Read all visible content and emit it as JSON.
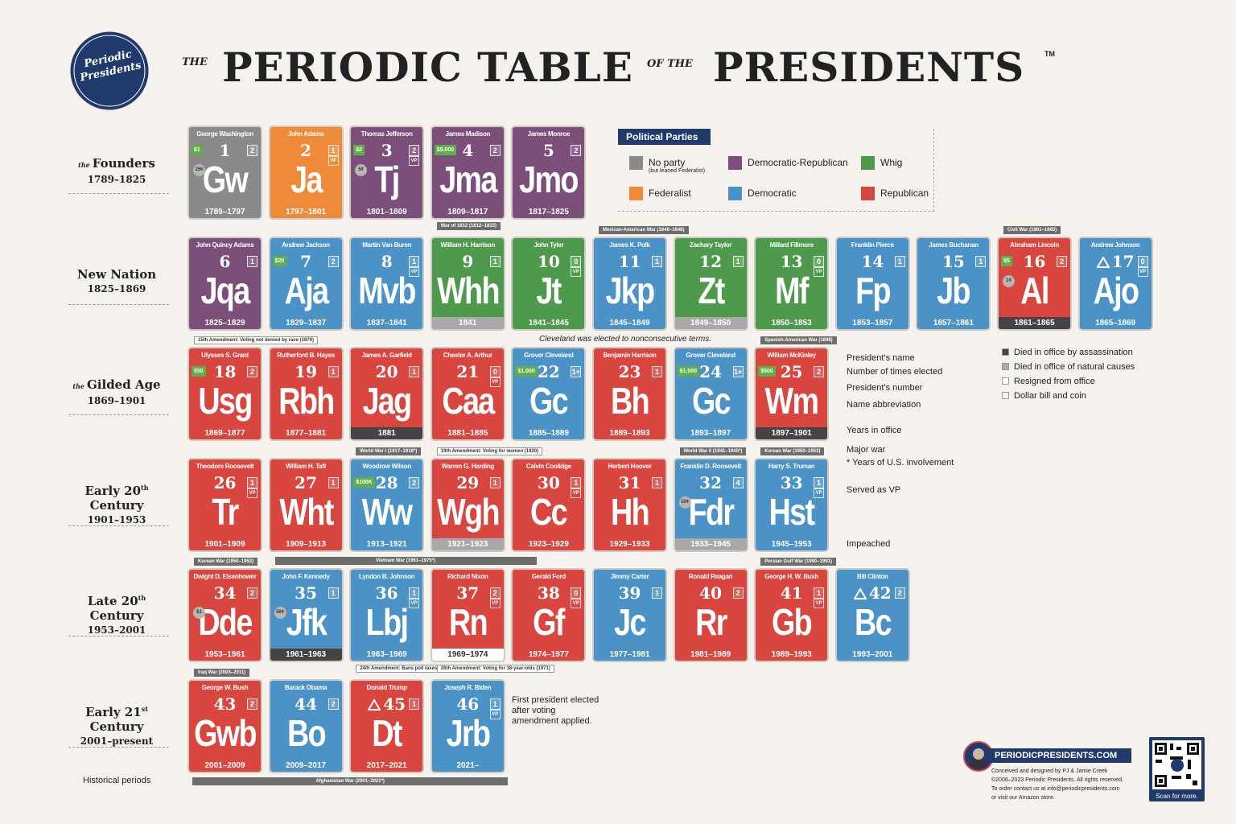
{
  "title": {
    "the": "THE",
    "main": "PERIODIC TABLE",
    "of_the": "OF THE",
    "end": "PRESIDENTS",
    "tm": "TM"
  },
  "logo": {
    "line1": "Periodic",
    "line2": "Presidents"
  },
  "legend": {
    "title": "Political Parties",
    "parties": [
      {
        "name": "No party",
        "note": "(but leaned Federalist)",
        "color": "#8a8a8a"
      },
      {
        "name": "Democratic-Republican",
        "color": "#7b4f7a"
      },
      {
        "name": "Whig",
        "color": "#4e9a4c"
      },
      {
        "name": "Federalist",
        "color": "#ee8a38"
      },
      {
        "name": "Democratic",
        "color": "#4b93c6"
      },
      {
        "name": "Republican",
        "color": "#d8463f"
      }
    ]
  },
  "statuses": [
    {
      "key": "assassinated",
      "label": "Died in office by assassination",
      "color": "#444444"
    },
    {
      "key": "natural",
      "label": "Died in office of natural causes",
      "color": "#a9a9a9"
    },
    {
      "key": "resigned",
      "label": "Resigned from office",
      "color": "#ffffff"
    },
    {
      "key": "coin",
      "label": "Dollar bill and coin",
      "color": "#f4f1ec"
    }
  ],
  "key": [
    "President's name",
    "Number of times elected",
    "President's number",
    "Name abbreviation",
    "Years in office",
    "Major war",
    "* Years of U.S. involvement",
    "Served as VP",
    "Impeached"
  ],
  "notes": {
    "cleveland": "Cleveland was elected to nonconsecutive terms.",
    "first_after": "First president elected after voting amendment applied.",
    "periods_label": "Historical periods"
  },
  "periods": [
    {
      "prefix": "the",
      "title": "Founders",
      "years": "1789–1825",
      "tiles": [
        {
          "n": 1,
          "name": "George Washington",
          "abbr": "Gw",
          "years": "1789–1797",
          "party": "No party",
          "elected": 2,
          "dollar": "$1",
          "coin": "25¢"
        },
        {
          "n": 2,
          "name": "John Adams",
          "abbr": "Ja",
          "years": "1797–1801",
          "party": "Federalist",
          "elected": 1,
          "vp": "VP"
        },
        {
          "n": 3,
          "name": "Thomas Jefferson",
          "abbr": "Tj",
          "years": "1801–1809",
          "party": "Democratic-Republican",
          "elected": 2,
          "vp": "VP",
          "dollar": "$2",
          "coin": "5¢"
        },
        {
          "n": 4,
          "name": "James Madison",
          "abbr": "Jma",
          "years": "1809–1817",
          "party": "Democratic-Republican",
          "elected": 2,
          "dollar": "$5,000",
          "war_below": "War of 1812 (1812–1815)"
        },
        {
          "n": 5,
          "name": "James Monroe",
          "abbr": "Jmo",
          "years": "1817–1825",
          "party": "Democratic-Republican",
          "elected": 2
        }
      ]
    },
    {
      "title": "New Nation",
      "years": "1825–1869",
      "tiles": [
        {
          "n": 6,
          "name": "John Quincy Adams",
          "abbr": "Jqa",
          "years": "1825–1829",
          "party": "Democratic-Republican",
          "elected": 1
        },
        {
          "n": 7,
          "name": "Andrew Jackson",
          "abbr": "Aja",
          "years": "1829–1837",
          "party": "Democratic",
          "elected": 2,
          "dollar": "$20"
        },
        {
          "n": 8,
          "name": "Martin Van Buren",
          "abbr": "Mvb",
          "years": "1837–1841",
          "party": "Democratic",
          "elected": 1,
          "vp": "VP"
        },
        {
          "n": 9,
          "name": "William H. Harrison",
          "abbr": "Whh",
          "years": "1841",
          "party": "Whig",
          "elected": 1,
          "status": "natural"
        },
        {
          "n": 10,
          "name": "John Tyler",
          "abbr": "Jt",
          "years": "1841–1845",
          "party": "Whig",
          "elected": 0,
          "vp": "VP"
        },
        {
          "n": 11,
          "name": "James K. Polk",
          "abbr": "Jkp",
          "years": "1845–1849",
          "party": "Democratic",
          "elected": 1,
          "war_above": "Mexican-American War (1846–1848)"
        },
        {
          "n": 12,
          "name": "Zachary Taylor",
          "abbr": "Zt",
          "years": "1849–1850",
          "party": "Whig",
          "elected": 1,
          "status": "natural"
        },
        {
          "n": 13,
          "name": "Millard Fillmore",
          "abbr": "Mf",
          "years": "1850–1853",
          "party": "Whig",
          "elected": 0,
          "vp": "VP"
        },
        {
          "n": 14,
          "name": "Franklin Pierce",
          "abbr": "Fp",
          "years": "1853–1857",
          "party": "Democratic",
          "elected": 1
        },
        {
          "n": 15,
          "name": "James Buchanan",
          "abbr": "Jb",
          "years": "1857–1861",
          "party": "Democratic",
          "elected": 1
        },
        {
          "n": 16,
          "name": "Abraham Lincoln",
          "abbr": "Al",
          "years": "1861–1865",
          "party": "Republican",
          "elected": 2,
          "dollar": "$5",
          "coin": "1¢",
          "status": "assassinated",
          "war_above": "Civil War (1861–1865)"
        },
        {
          "n": 17,
          "name": "Andrew Johnson",
          "abbr": "Ajo",
          "years": "1865–1869",
          "party": "Democratic",
          "elected": 0,
          "vp": "VP",
          "impeached": true
        }
      ]
    },
    {
      "prefix": "the",
      "title": "Gilded Age",
      "years": "1869–1901",
      "tiles": [
        {
          "n": 18,
          "name": "Ulysses S. Grant",
          "abbr": "Usg",
          "years": "1869–1877",
          "party": "Republican",
          "elected": 2,
          "dollar": "$50",
          "amendment_above": "15th Amendment: Voting not denied by race (1870)"
        },
        {
          "n": 19,
          "name": "Rutherford B. Hayes",
          "abbr": "Rbh",
          "years": "1877–1881",
          "party": "Republican",
          "elected": 1
        },
        {
          "n": 20,
          "name": "James A. Garfield",
          "abbr": "Jag",
          "years": "1881",
          "party": "Republican",
          "elected": 1,
          "status": "assassinated"
        },
        {
          "n": 21,
          "name": "Chester A. Arthur",
          "abbr": "Caa",
          "years": "1881–1885",
          "party": "Republican",
          "elected": 0,
          "vp": "VP"
        },
        {
          "n": 22,
          "name": "Grover Cleveland",
          "abbr": "Gc",
          "years": "1885–1889",
          "party": "Democratic",
          "elected": "1+",
          "dollar": "$1,000"
        },
        {
          "n": 23,
          "name": "Benjamin Harrison",
          "abbr": "Bh",
          "years": "1889–1893",
          "party": "Republican",
          "elected": 1
        },
        {
          "n": 24,
          "name": "Grover Cleveland",
          "abbr": "Gc",
          "years": "1893–1897",
          "party": "Democratic",
          "elected": "1+",
          "dollar": "$1,000"
        },
        {
          "n": 25,
          "name": "William McKinley",
          "abbr": "Wm",
          "years": "1897–1901",
          "party": "Republican",
          "elected": 2,
          "dollar": "$500",
          "status": "assassinated",
          "war_above": "Spanish-American War (1898)"
        }
      ]
    },
    {
      "title": "Early 20",
      "sup": "th",
      "title2": "Century",
      "years": "1901–1953",
      "tiles": [
        {
          "n": 26,
          "name": "Theodore Roosevelt",
          "abbr": "Tr",
          "years": "1901–1909",
          "party": "Republican",
          "elected": 1,
          "vp": "VP"
        },
        {
          "n": 27,
          "name": "William H. Taft",
          "abbr": "Wht",
          "years": "1909–1913",
          "party": "Republican",
          "elected": 1
        },
        {
          "n": 28,
          "name": "Woodrow Wilson",
          "abbr": "Ww",
          "years": "1913–1921",
          "party": "Democratic",
          "elected": 2,
          "dollar": "$100K",
          "war_above": "World War I (1917–1918*)"
        },
        {
          "n": 29,
          "name": "Warren G. Harding",
          "abbr": "Wgh",
          "years": "1921–1923",
          "party": "Republican",
          "elected": 1,
          "status": "natural",
          "amendment_above": "19th Amendment: Voting for women (1920)"
        },
        {
          "n": 30,
          "name": "Calvin Coolidge",
          "abbr": "Cc",
          "years": "1923–1929",
          "party": "Republican",
          "elected": 1,
          "vp": "VP"
        },
        {
          "n": 31,
          "name": "Herbert Hoover",
          "abbr": "Hh",
          "years": "1929–1933",
          "party": "Republican",
          "elected": 1
        },
        {
          "n": 32,
          "name": "Franklin D. Roosevelt",
          "abbr": "Fdr",
          "years": "1933–1945",
          "party": "Democratic",
          "elected": 4,
          "coin": "10¢",
          "status": "natural",
          "war_above": "World War II (1941–1945*)"
        },
        {
          "n": 33,
          "name": "Harry S. Truman",
          "abbr": "Hst",
          "years": "1945–1953",
          "party": "Democratic",
          "elected": 1,
          "vp": "VP",
          "war_above": "Korean War (1950–1953)"
        }
      ]
    },
    {
      "title": "Late 20",
      "sup": "th",
      "title2": "Century",
      "years": "1953–2001",
      "tiles": [
        {
          "n": 34,
          "name": "Dwight D. Eisenhower",
          "abbr": "Dde",
          "years": "1953–1961",
          "party": "Republican",
          "elected": 2,
          "coin": "$1",
          "war_above": "Korean War (1950–1953)"
        },
        {
          "n": 35,
          "name": "John F. Kennedy",
          "abbr": "Jfk",
          "years": "1961–1963",
          "party": "Democratic",
          "elected": 1,
          "coin": "50¢",
          "status": "assassinated",
          "war_long_above": "Vietnam War (1961–1975*)"
        },
        {
          "n": 36,
          "name": "Lyndon B. Johnson",
          "abbr": "Lbj",
          "years": "1963–1969",
          "party": "Democratic",
          "elected": 1,
          "vp": "VP",
          "amendment_below": "24th Amendment: Bans poll taxes (1964)"
        },
        {
          "n": 37,
          "name": "Richard Nixon",
          "abbr": "Rn",
          "years": "1969–1974",
          "party": "Republican",
          "elected": 2,
          "vp": "VP",
          "status": "resigned",
          "amendment_below": "26th Amendment: Voting for 18-year-olds (1971)"
        },
        {
          "n": 38,
          "name": "Gerald Ford",
          "abbr": "Gf",
          "years": "1974–1977",
          "party": "Republican",
          "elected": 0,
          "vp": "VP"
        },
        {
          "n": 39,
          "name": "Jimmy Carter",
          "abbr": "Jc",
          "years": "1977–1981",
          "party": "Democratic",
          "elected": 1
        },
        {
          "n": 40,
          "name": "Ronald Reagan",
          "abbr": "Rr",
          "years": "1981–1989",
          "party": "Republican",
          "elected": 2
        },
        {
          "n": 41,
          "name": "George H. W. Bush",
          "abbr": "Gb",
          "years": "1989–1993",
          "party": "Republican",
          "elected": 1,
          "vp": "VP",
          "war_above": "Persian Gulf War (1990–1991)"
        },
        {
          "n": 42,
          "name": "Bill Clinton",
          "abbr": "Bc",
          "years": "1993–2001",
          "party": "Democratic",
          "elected": 2,
          "impeached": true
        }
      ]
    },
    {
      "title": "Early 21",
      "sup": "st",
      "title2": "Century",
      "years": "2001–present",
      "band_below": "Afghanistan War (2001–2021*)",
      "tiles": [
        {
          "n": 43,
          "name": "George W. Bush",
          "abbr": "Gwb",
          "years": "2001–2009",
          "party": "Republican",
          "elected": 2,
          "war_above": "Iraq War (2003–2011)"
        },
        {
          "n": 44,
          "name": "Barack Obama",
          "abbr": "Bo",
          "years": "2009–2017",
          "party": "Democratic",
          "elected": 2
        },
        {
          "n": 45,
          "name": "Donald Trump",
          "abbr": "Dt",
          "years": "2017–2021",
          "party": "Republican",
          "elected": 1,
          "impeached": true
        },
        {
          "n": 46,
          "name": "Joseph R. Biden",
          "abbr": "Jrb",
          "years": "2021–",
          "party": "Democratic",
          "elected": 1,
          "vp": "VP"
        }
      ]
    }
  ],
  "footer": {
    "site": "PERIODICPRESIDENTS.COM",
    "credits": [
      "Conceived and designed by PJ & Jamie Creek",
      "©2006–2023 Periodic Presidents. All rights reserved.",
      "To order contact us at info@periodicpresidents.com",
      "or visit our Amazon store."
    ],
    "scan": "Scan for more."
  }
}
